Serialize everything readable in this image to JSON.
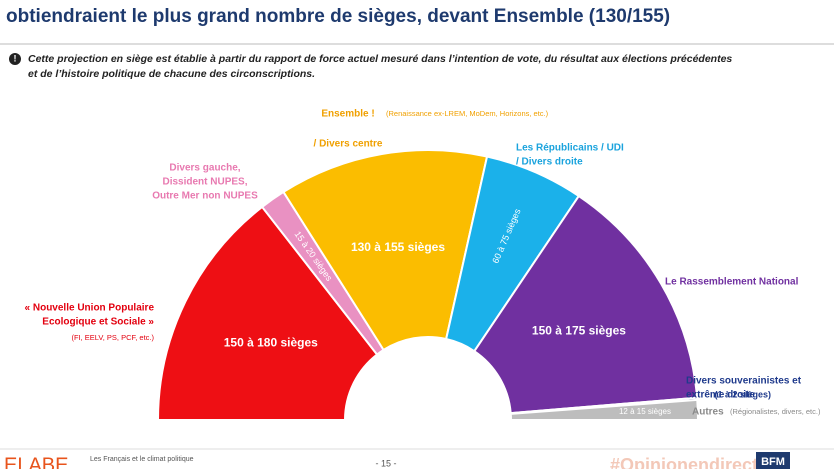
{
  "chart_data": {
    "type": "semicircle",
    "title": "obtiendraient le plus grand nombre de sièges, devant Ensemble (130/155)",
    "note": [
      "Cette projection en siège est établie à partir du rapport de force actuel mesuré dans l’intention de vote, du résultat aux élections précédentes",
      "et de l’histoire politique de chacune des circonscriptions."
    ],
    "segments": [
      {
        "label": [
          "« Nouvelle Union Populaire",
          "Ecologique et Sociale »"
        ],
        "detail": "(FI, EELV, PS, PCF, etc.)",
        "color": "#ee0f14",
        "min": 150,
        "max": 180,
        "value_label": "150 à 180 sièges"
      },
      {
        "label": [
          "Divers gauche,",
          "Dissident NUPES,",
          "Outre Mer non NUPES"
        ],
        "color": "#e991c2",
        "min": 15,
        "max": 20,
        "value_label": "15 à 20 sièges"
      },
      {
        "label": [
          "Ensemble !",
          "/ Divers centre"
        ],
        "detail": "(Renaissance ex-LREM, MoDem, Horizons, etc.)",
        "color": "#fbbd00",
        "min": 130,
        "max": 155,
        "value_label": "130 à 155 sièges"
      },
      {
        "label": [
          "Les Républicains / UDI",
          "/ Divers droite"
        ],
        "color": "#1bb1ea",
        "min": 60,
        "max": 75,
        "value_label": "60 à 75 sièges"
      },
      {
        "label": [
          "Le Rassemblement National"
        ],
        "color": "#7030a0",
        "min": 150,
        "max": 175,
        "value_label": "150 à 175 sièges"
      },
      {
        "label": [
          "Divers souverainistes et",
          "extrême droite"
        ],
        "color": "#1f3a8c",
        "min": 1,
        "max": 2,
        "value_label": "(1 à 2 sièges)"
      },
      {
        "label": [
          "Autres"
        ],
        "detail": "(Régionalistes, divers, etc.)",
        "color": "#bdbdbd",
        "min": 12,
        "max": 15,
        "value_label": "12 à 15 sièges"
      }
    ],
    "footer": {
      "brand": "ELABE",
      "subject": "Les Français et le climat politique",
      "page": "- 15 -",
      "hashtag": "#Opinionendirect",
      "channel": "BFM"
    }
  }
}
